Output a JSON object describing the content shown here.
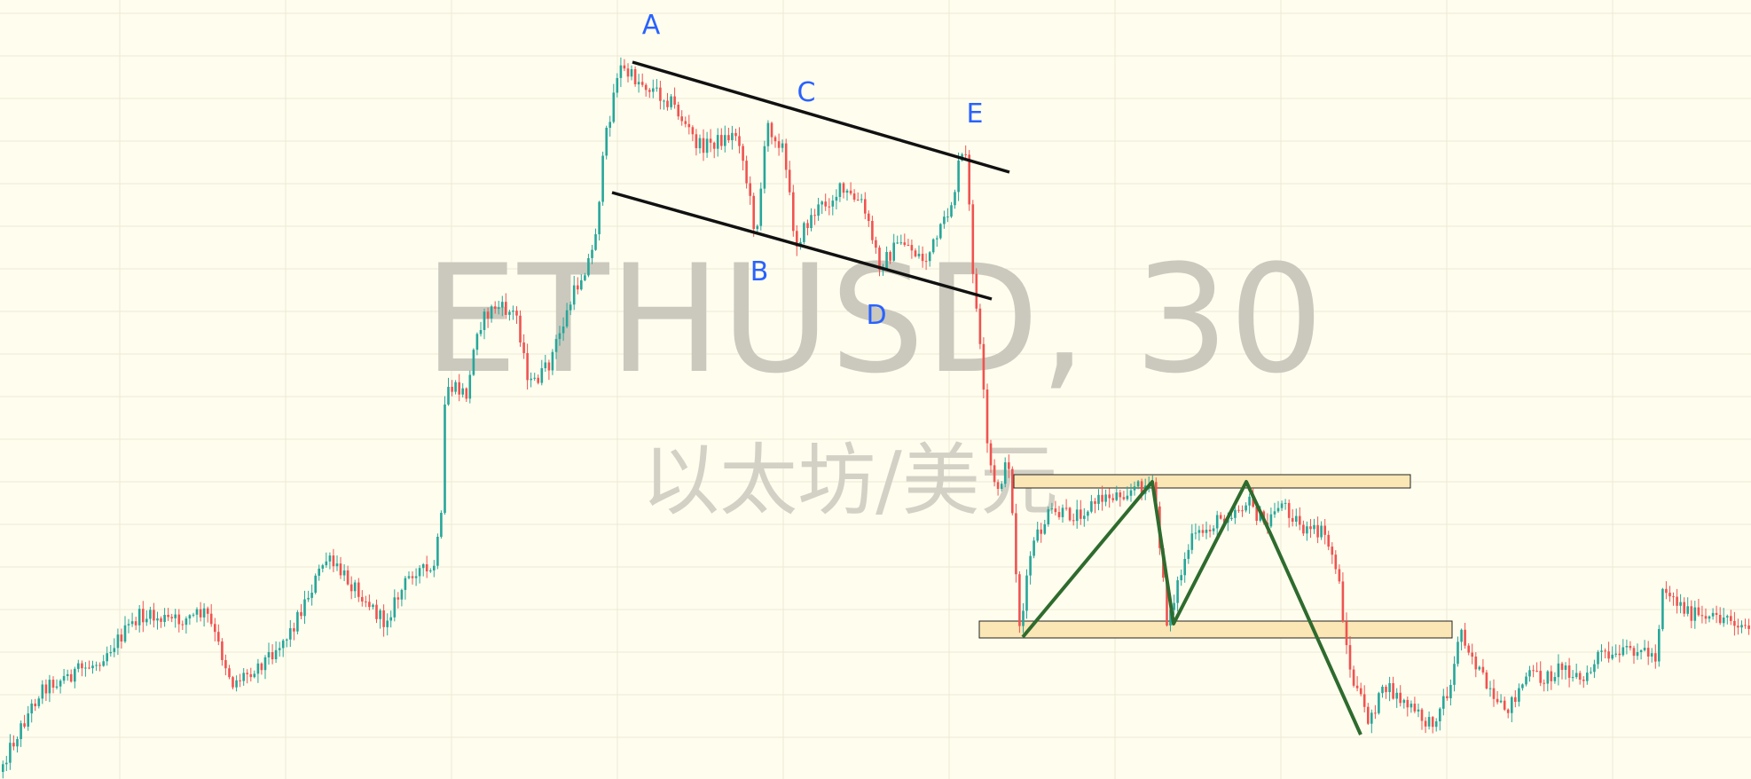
{
  "chart_data": {
    "type": "candlestick",
    "symbol": "ETHUSD",
    "interval": "30",
    "watermark_title": "ETHUSD, 30",
    "watermark_subtitle": "以太坊/美元",
    "title": "",
    "xlabel": "",
    "ylabel": "",
    "grid": true,
    "point_labels": [
      "A",
      "B",
      "C",
      "D",
      "E"
    ],
    "colors": {
      "background": "#fffdee",
      "grid": "#ece9d6",
      "up": "#26a69a",
      "down": "#ef5350",
      "channel": "#111111",
      "zigzag": "#2e6b2e",
      "zone_fill": "#fbe6b6",
      "zone_stroke": "#222222",
      "label": "#2962ff",
      "watermark": "#cbc9bd"
    },
    "icons": []
  }
}
